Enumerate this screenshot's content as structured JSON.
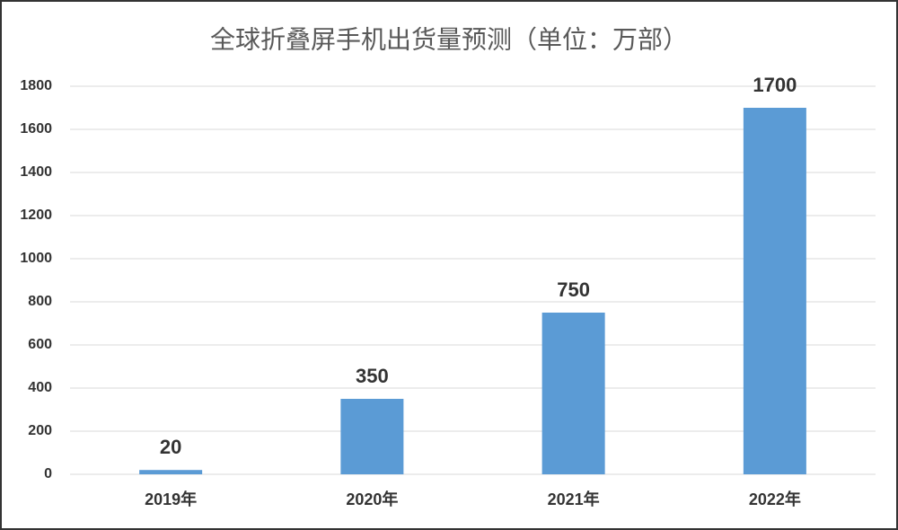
{
  "chart_data": {
    "type": "bar",
    "title": "全球折叠屏手机出货量预测（单位：万部）",
    "categories": [
      "2019年",
      "2020年",
      "2021年",
      "2022年"
    ],
    "values": [
      20,
      350,
      750,
      1700
    ],
    "color": "#5b9bd5",
    "ylim": [
      0,
      1800
    ],
    "yticks": [
      0,
      200,
      400,
      600,
      800,
      1000,
      1200,
      1400,
      1600,
      1800
    ],
    "grid": true
  }
}
